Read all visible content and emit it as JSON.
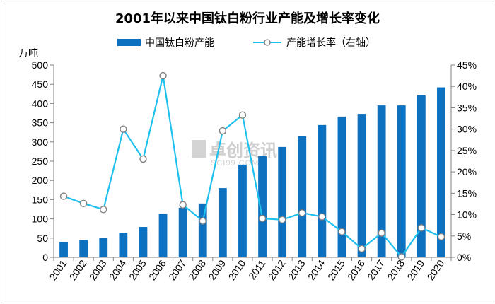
{
  "chart_data": {
    "type": "bar+line",
    "title": "2001年以来中国钛白粉行业产能及增长率变化",
    "left_axis_unit": "万吨",
    "categories": [
      "2001",
      "2002",
      "2003",
      "2004",
      "2005",
      "2006",
      "2007",
      "2008",
      "2009",
      "2010",
      "2011",
      "2012",
      "2013",
      "2014",
      "2015",
      "2016",
      "2017",
      "2018",
      "2019",
      "2020"
    ],
    "series": [
      {
        "name": "中国钛白粉产能",
        "type": "bar",
        "axis": "left",
        "color": "#0d71c0",
        "values": [
          40,
          45,
          51,
          64,
          79,
          113,
          129,
          140,
          180,
          241,
          263,
          287,
          315,
          344,
          366,
          373,
          395,
          395,
          421,
          442
        ]
      },
      {
        "name": "产能增长率（右轴）",
        "type": "line",
        "axis": "right",
        "color": "#1ec0ee",
        "values": [
          14.3,
          12.6,
          11.2,
          30.0,
          23.0,
          42.5,
          12.3,
          8.5,
          29.6,
          33.3,
          9.1,
          8.8,
          10.4,
          9.5,
          6.0,
          2.0,
          5.7,
          0.1,
          6.9,
          4.8
        ]
      }
    ],
    "left_axis": {
      "min": 0,
      "max": 500,
      "ticks": [
        "0",
        "50",
        "100",
        "150",
        "200",
        "250",
        "300",
        "350",
        "400",
        "450",
        "500"
      ]
    },
    "right_axis": {
      "min": 0,
      "max": 45,
      "ticks": [
        "0%",
        "5%",
        "10%",
        "15%",
        "20%",
        "25%",
        "30%",
        "35%",
        "40%",
        "45%"
      ]
    },
    "legend_position": "top-center",
    "grid": false,
    "watermark": {
      "text": "卓创资讯",
      "sub": "SCI99.COM"
    }
  }
}
